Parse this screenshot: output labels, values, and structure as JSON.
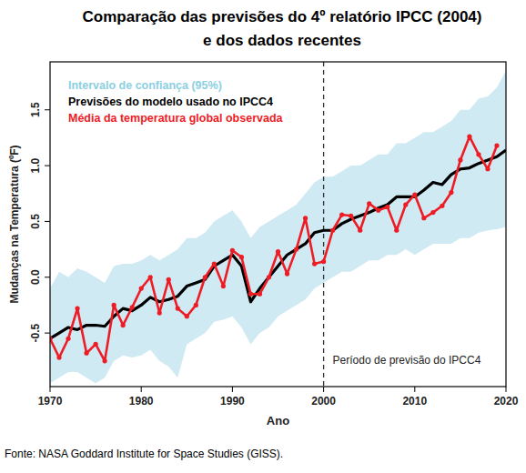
{
  "chart_data": {
    "type": "line",
    "title": "Comparação das previsões do 4º relatório IPCC (2004)",
    "subtitle": "e dos dados recentes",
    "source": "Fonte: NASA Goddard Institute for Space Studies (GISS).",
    "x_label": "Ano",
    "y_label": "Mudanças na Temperatura (ºF)",
    "x": [
      1970,
      1971,
      1972,
      1973,
      1974,
      1975,
      1976,
      1977,
      1978,
      1979,
      1980,
      1981,
      1982,
      1983,
      1984,
      1985,
      1986,
      1987,
      1988,
      1989,
      1990,
      1991,
      1992,
      1993,
      1994,
      1995,
      1996,
      1997,
      1998,
      1999,
      2000,
      2001,
      2002,
      2003,
      2004,
      2005,
      2006,
      2007,
      2008,
      2009,
      2010,
      2011,
      2012,
      2013,
      2014,
      2015,
      2016,
      2017,
      2018,
      2019,
      2020
    ],
    "series": [
      {
        "name": "Intervalo de confiança (95%)",
        "type": "band",
        "color": "#a8d8ea",
        "values": [
          -0.1,
          0.05,
          0.0,
          0.08,
          0.05,
          0.0,
          -0.05,
          0.1,
          0.12,
          0.12,
          0.15,
          0.2,
          0.15,
          0.2,
          0.25,
          0.35,
          0.35,
          0.4,
          0.5,
          0.55,
          0.6,
          0.5,
          0.35,
          0.45,
          0.5,
          0.55,
          0.6,
          0.65,
          0.75,
          0.85,
          0.9,
          0.9,
          0.95,
          1.0,
          1.0,
          1.05,
          1.1,
          1.1,
          1.2,
          1.2,
          1.25,
          1.3,
          1.3,
          1.35,
          1.4,
          1.5,
          1.5,
          1.6,
          1.62,
          1.7,
          1.85
        ],
        "lower": [
          -0.95,
          -0.9,
          -0.85,
          -0.85,
          -0.9,
          -0.95,
          -0.9,
          -0.75,
          -0.7,
          -0.72,
          -0.7,
          -0.65,
          -0.75,
          -0.8,
          -0.9,
          -0.6,
          -0.55,
          -0.5,
          -0.4,
          -0.38,
          -0.35,
          -0.45,
          -0.6,
          -0.5,
          -0.45,
          -0.35,
          -0.3,
          -0.25,
          -0.2,
          -0.1,
          -0.05,
          0.0,
          0.05,
          0.05,
          0.1,
          0.15,
          0.15,
          0.2,
          0.2,
          0.25,
          0.2,
          0.25,
          0.3,
          0.3,
          0.3,
          0.35,
          0.35,
          0.4,
          0.42,
          0.43,
          0.45
        ]
      },
      {
        "name": "Previsões do modelo usado no IPCC4",
        "type": "line",
        "color": "#000000",
        "line_style": "solid",
        "values": [
          -0.55,
          -0.5,
          -0.45,
          -0.47,
          -0.43,
          -0.43,
          -0.44,
          -0.35,
          -0.28,
          -0.3,
          -0.25,
          -0.18,
          -0.22,
          -0.2,
          -0.17,
          -0.08,
          -0.05,
          -0.02,
          0.1,
          0.15,
          0.2,
          0.1,
          -0.22,
          -0.1,
          0.0,
          0.1,
          0.2,
          0.25,
          0.3,
          0.4,
          0.42,
          0.42,
          0.48,
          0.52,
          0.55,
          0.58,
          0.62,
          0.65,
          0.72,
          0.72,
          0.72,
          0.78,
          0.85,
          0.83,
          0.92,
          0.97,
          0.98,
          1.02,
          1.05,
          1.08,
          1.14
        ]
      },
      {
        "name": "Média da temperatura global observada",
        "type": "line",
        "color": "#ee1c25",
        "line_style": "solid",
        "marker": "circle",
        "values": [
          -0.55,
          -0.72,
          -0.55,
          -0.28,
          -0.68,
          -0.6,
          -0.75,
          -0.25,
          -0.43,
          -0.27,
          -0.1,
          0.0,
          -0.32,
          -0.02,
          -0.28,
          -0.35,
          -0.25,
          0.0,
          0.12,
          -0.08,
          0.24,
          0.18,
          -0.15,
          -0.15,
          0.0,
          0.23,
          0.03,
          0.25,
          0.53,
          0.12,
          0.14,
          0.42,
          0.56,
          0.55,
          0.42,
          0.66,
          0.6,
          0.63,
          0.42,
          0.65,
          0.74,
          0.53,
          0.58,
          0.64,
          0.76,
          1.05,
          1.26,
          1.1,
          0.97,
          1.18,
          null
        ]
      }
    ],
    "xlim": [
      1970,
      2020
    ],
    "xticks": [
      1970,
      1980,
      1990,
      2000,
      2010,
      2020
    ],
    "ylim": [
      -0.98,
      1.93
    ],
    "yticks": [
      -0.5,
      {
        "value": 0,
        "label": "0.0"
      },
      0.5,
      {
        "value": 1,
        "label": "1.0"
      },
      1.5
    ],
    "annotations": [
      {
        "text": "Período de previsão do IPCC4",
        "x": 2000,
        "line_style": "dashed"
      }
    ],
    "legend": "upper left",
    "grid": false
  }
}
